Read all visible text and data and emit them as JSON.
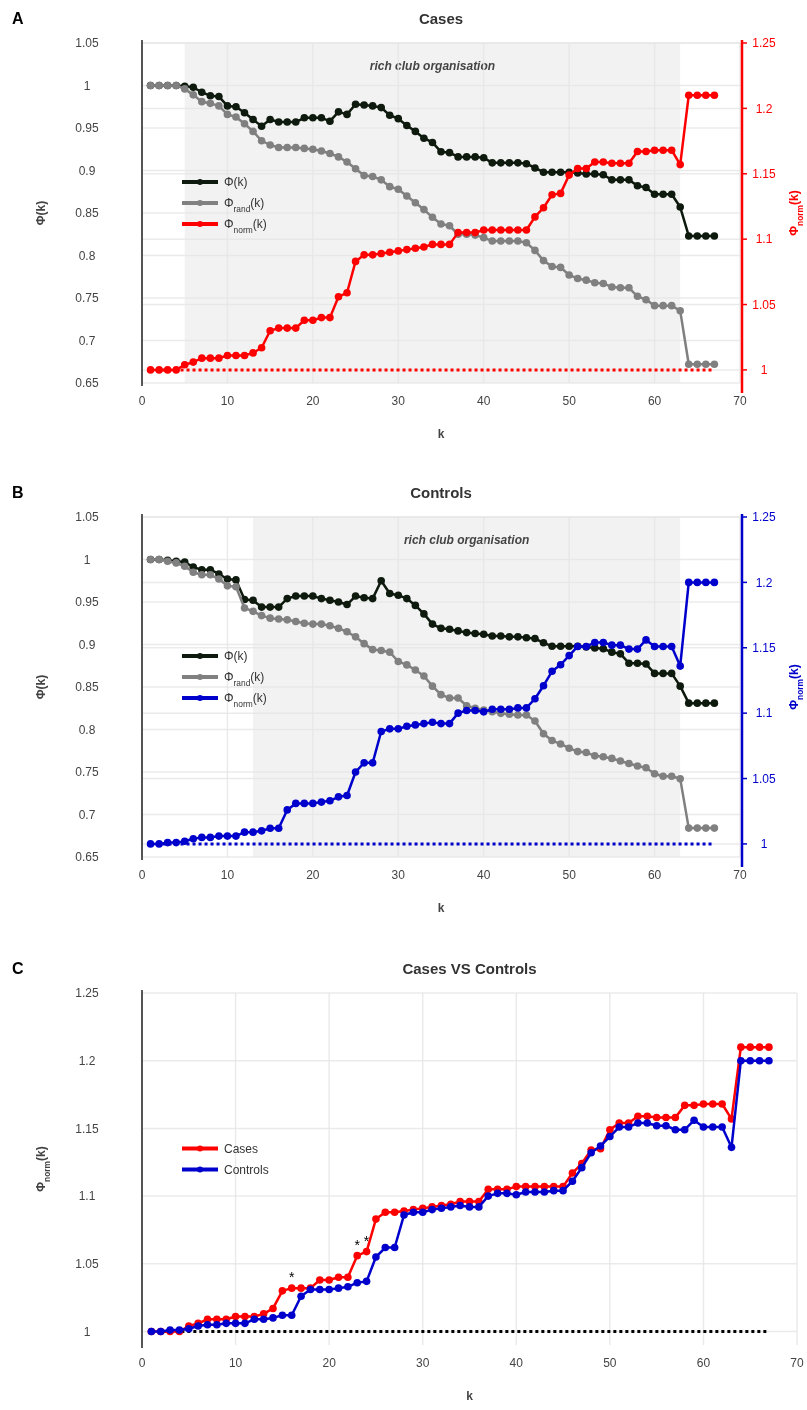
{
  "chart_data": [
    {
      "type": "line",
      "title": "Cases",
      "xlabel": "k",
      "ylabel": "Φ(k)",
      "y2label": "Φ$_{norm}$(k)",
      "annotations": [
        "A"
      ],
      "x": [
        1,
        2,
        3,
        4,
        5,
        6,
        7,
        8,
        9,
        10,
        11,
        12,
        13,
        14,
        15,
        16,
        17,
        18,
        19,
        20,
        21,
        22,
        23,
        24,
        25,
        26,
        27,
        28,
        29,
        30,
        31,
        32,
        33,
        34,
        35,
        36,
        37,
        38,
        39,
        40,
        41,
        42,
        43,
        44,
        45,
        46,
        47,
        48,
        49,
        50,
        51,
        52,
        53,
        54,
        55,
        56,
        57,
        58,
        59,
        60,
        61,
        62,
        63,
        64,
        65,
        66,
        67
      ],
      "xlim": [
        0,
        70
      ],
      "xticks": [
        0,
        10,
        20,
        30,
        40,
        50,
        60,
        70
      ],
      "ylim": [
        0.65,
        1.05
      ],
      "yticks": [
        0.65,
        0.7,
        0.75,
        0.8,
        0.85,
        0.9,
        0.95,
        1,
        1.05
      ],
      "y2lim": [
        0.99,
        1.25
      ],
      "y2ticks": [
        1,
        1.05,
        1.1,
        1.15,
        1.2,
        1.25
      ],
      "grid": true,
      "legend": "left",
      "marker": "circle",
      "line_style": "solid",
      "bands": [
        {
          "axis": "x",
          "from": 5,
          "to": 63,
          "label": "rich club organisation",
          "color": "#f2f2f2"
        }
      ],
      "ref_lines": [
        {
          "axis": "y2",
          "value": 1,
          "color": "#ff0000",
          "line_style": "dotted"
        }
      ],
      "series": [
        {
          "name": "Φ(k)",
          "color": "#0d1a0d",
          "values": [
            1,
            1,
            1,
            1,
            0.999,
            0.998,
            0.992,
            0.988,
            0.987,
            0.976,
            0.975,
            0.968,
            0.96,
            0.952,
            0.96,
            0.957,
            0.957,
            0.957,
            0.962,
            0.962,
            0.962,
            0.958,
            0.969,
            0.966,
            0.978,
            0.977,
            0.976,
            0.974,
            0.965,
            0.961,
            0.953,
            0.946,
            0.938,
            0.933,
            0.922,
            0.921,
            0.916,
            0.916,
            0.916,
            0.915,
            0.909,
            0.909,
            0.909,
            0.909,
            0.908,
            0.903,
            0.898,
            0.898,
            0.898,
            0.898,
            0.897,
            0.896,
            0.896,
            0.895,
            0.889,
            0.889,
            0.889,
            0.882,
            0.88,
            0.872,
            0.872,
            0.872,
            0.857,
            0.823,
            0.823,
            0.823,
            0.823
          ]
        },
        {
          "name": "Φ$_{rand}$(k)",
          "color": "#808080",
          "values": [
            1,
            1,
            1,
            1,
            0.996,
            0.989,
            0.981,
            0.979,
            0.976,
            0.966,
            0.963,
            0.955,
            0.946,
            0.935,
            0.93,
            0.927,
            0.927,
            0.927,
            0.926,
            0.925,
            0.923,
            0.92,
            0.916,
            0.91,
            0.902,
            0.894,
            0.893,
            0.889,
            0.881,
            0.878,
            0.87,
            0.862,
            0.854,
            0.845,
            0.837,
            0.835,
            0.825,
            0.825,
            0.824,
            0.821,
            0.817,
            0.817,
            0.817,
            0.817,
            0.815,
            0.806,
            0.794,
            0.787,
            0.786,
            0.777,
            0.773,
            0.771,
            0.768,
            0.767,
            0.763,
            0.762,
            0.762,
            0.752,
            0.748,
            0.741,
            0.741,
            0.741,
            0.735,
            0.672,
            0.672,
            0.672,
            0.672
          ]
        },
        {
          "name": "Φ$_{norm}$(k)",
          "color": "#ff0000",
          "axis": "y2",
          "values": [
            1,
            1,
            1,
            1,
            1.004,
            1.006,
            1.009,
            1.009,
            1.009,
            1.011,
            1.011,
            1.011,
            1.013,
            1.017,
            1.03,
            1.032,
            1.032,
            1.032,
            1.038,
            1.038,
            1.04,
            1.04,
            1.056,
            1.059,
            1.083,
            1.088,
            1.088,
            1.089,
            1.09,
            1.091,
            1.092,
            1.093,
            1.094,
            1.096,
            1.096,
            1.096,
            1.105,
            1.105,
            1.105,
            1.107,
            1.107,
            1.107,
            1.107,
            1.107,
            1.107,
            1.117,
            1.124,
            1.134,
            1.135,
            1.149,
            1.154,
            1.154,
            1.159,
            1.159,
            1.158,
            1.158,
            1.158,
            1.167,
            1.167,
            1.168,
            1.168,
            1.168,
            1.157,
            1.21,
            1.21,
            1.21,
            1.21
          ]
        }
      ]
    },
    {
      "type": "line",
      "title": "Controls",
      "xlabel": "k",
      "ylabel": "Φ(k)",
      "y2label": "Φ$_{norm}$(k)",
      "annotations": [
        "B"
      ],
      "x": [
        1,
        2,
        3,
        4,
        5,
        6,
        7,
        8,
        9,
        10,
        11,
        12,
        13,
        14,
        15,
        16,
        17,
        18,
        19,
        20,
        21,
        22,
        23,
        24,
        25,
        26,
        27,
        28,
        29,
        30,
        31,
        32,
        33,
        34,
        35,
        36,
        37,
        38,
        39,
        40,
        41,
        42,
        43,
        44,
        45,
        46,
        47,
        48,
        49,
        50,
        51,
        52,
        53,
        54,
        55,
        56,
        57,
        58,
        59,
        60,
        61,
        62,
        63,
        64,
        65,
        66,
        67
      ],
      "xlim": [
        0,
        70
      ],
      "xticks": [
        0,
        10,
        20,
        30,
        40,
        50,
        60,
        70
      ],
      "ylim": [
        0.65,
        1.05
      ],
      "yticks": [
        0.65,
        0.7,
        0.75,
        0.8,
        0.85,
        0.9,
        0.95,
        1,
        1.05
      ],
      "y2lim": [
        0.99,
        1.25
      ],
      "y2ticks": [
        1,
        1.05,
        1.1,
        1.15,
        1.2,
        1.25
      ],
      "grid": true,
      "legend": "left",
      "marker": "circle",
      "line_style": "solid",
      "bands": [
        {
          "axis": "x",
          "from": 13,
          "to": 63,
          "label": "rich club organisation",
          "color": "#f2f2f2"
        }
      ],
      "ref_lines": [
        {
          "axis": "y2",
          "value": 1,
          "color": "#0000cc",
          "line_style": "dotted"
        }
      ],
      "series": [
        {
          "name": "Φ(k)",
          "color": "#0d1a0d",
          "values": [
            1,
            1,
            0.999,
            0.998,
            0.997,
            0.991,
            0.988,
            0.988,
            0.983,
            0.977,
            0.976,
            0.953,
            0.952,
            0.944,
            0.944,
            0.944,
            0.954,
            0.957,
            0.957,
            0.957,
            0.954,
            0.952,
            0.95,
            0.947,
            0.957,
            0.955,
            0.954,
            0.975,
            0.96,
            0.958,
            0.954,
            0.946,
            0.936,
            0.924,
            0.919,
            0.918,
            0.916,
            0.914,
            0.913,
            0.912,
            0.91,
            0.91,
            0.909,
            0.909,
            0.908,
            0.907,
            0.902,
            0.898,
            0.898,
            0.898,
            0.898,
            0.897,
            0.896,
            0.895,
            0.891,
            0.889,
            0.878,
            0.878,
            0.877,
            0.866,
            0.866,
            0.866,
            0.851,
            0.831,
            0.831,
            0.831,
            0.831
          ]
        },
        {
          "name": "Φ$_{rand}$(k)",
          "color": "#808080",
          "values": [
            1,
            1,
            0.998,
            0.996,
            0.992,
            0.985,
            0.982,
            0.982,
            0.977,
            0.969,
            0.968,
            0.943,
            0.939,
            0.934,
            0.931,
            0.93,
            0.929,
            0.927,
            0.925,
            0.924,
            0.924,
            0.922,
            0.919,
            0.915,
            0.909,
            0.901,
            0.894,
            0.893,
            0.891,
            0.88,
            0.876,
            0.87,
            0.863,
            0.851,
            0.841,
            0.837,
            0.837,
            0.828,
            0.825,
            0.823,
            0.821,
            0.819,
            0.818,
            0.817,
            0.817,
            0.81,
            0.795,
            0.787,
            0.783,
            0.778,
            0.774,
            0.773,
            0.769,
            0.768,
            0.766,
            0.763,
            0.76,
            0.757,
            0.755,
            0.748,
            0.745,
            0.745,
            0.742,
            0.684,
            0.684,
            0.684,
            0.684
          ]
        },
        {
          "name": "Φ$_{norm}$(k)",
          "color": "#0000cc",
          "axis": "y2",
          "values": [
            1,
            1,
            1.001,
            1.001,
            1.002,
            1.004,
            1.005,
            1.005,
            1.006,
            1.006,
            1.006,
            1.009,
            1.009,
            1.01,
            1.012,
            1.012,
            1.026,
            1.031,
            1.031,
            1.031,
            1.032,
            1.033,
            1.036,
            1.037,
            1.055,
            1.062,
            1.062,
            1.086,
            1.088,
            1.088,
            1.09,
            1.091,
            1.092,
            1.093,
            1.092,
            1.092,
            1.1,
            1.102,
            1.102,
            1.101,
            1.103,
            1.103,
            1.103,
            1.104,
            1.104,
            1.111,
            1.121,
            1.132,
            1.137,
            1.144,
            1.151,
            1.151,
            1.154,
            1.154,
            1.152,
            1.152,
            1.149,
            1.149,
            1.156,
            1.151,
            1.151,
            1.151,
            1.136,
            1.2,
            1.2,
            1.2,
            1.2
          ]
        }
      ]
    },
    {
      "type": "line",
      "title": "Cases VS Controls",
      "xlabel": "k",
      "ylabel": "Φ$_{norm}$(k)",
      "annotations": [
        "C",
        {
          "text": "*",
          "x": 16,
          "y": 1.032
        },
        {
          "text": "*",
          "x": 23,
          "y": 1.056
        },
        {
          "text": "*",
          "x": 24,
          "y": 1.059
        }
      ],
      "x": [
        1,
        2,
        3,
        4,
        5,
        6,
        7,
        8,
        9,
        10,
        11,
        12,
        13,
        14,
        15,
        16,
        17,
        18,
        19,
        20,
        21,
        22,
        23,
        24,
        25,
        26,
        27,
        28,
        29,
        30,
        31,
        32,
        33,
        34,
        35,
        36,
        37,
        38,
        39,
        40,
        41,
        42,
        43,
        44,
        45,
        46,
        47,
        48,
        49,
        50,
        51,
        52,
        53,
        54,
        55,
        56,
        57,
        58,
        59,
        60,
        61,
        62,
        63,
        64,
        65,
        66,
        67
      ],
      "xlim": [
        0,
        70
      ],
      "xticks": [
        0,
        10,
        20,
        30,
        40,
        50,
        60,
        70
      ],
      "ylim": [
        0.99,
        1.25
      ],
      "yticks": [
        1,
        1.05,
        1.1,
        1.15,
        1.2,
        1.25
      ],
      "grid": true,
      "legend": "left",
      "marker": "circle",
      "line_style": "solid",
      "ref_lines": [
        {
          "axis": "y",
          "value": 1,
          "color": "#000000",
          "line_style": "dotted"
        }
      ],
      "series": [
        {
          "name": "Cases",
          "color": "#ff0000",
          "values": [
            1,
            1,
            1,
            1,
            1.004,
            1.006,
            1.009,
            1.009,
            1.009,
            1.011,
            1.011,
            1.011,
            1.013,
            1.017,
            1.03,
            1.032,
            1.032,
            1.032,
            1.038,
            1.038,
            1.04,
            1.04,
            1.056,
            1.059,
            1.083,
            1.088,
            1.088,
            1.089,
            1.09,
            1.091,
            1.092,
            1.093,
            1.094,
            1.096,
            1.096,
            1.096,
            1.105,
            1.105,
            1.105,
            1.107,
            1.107,
            1.107,
            1.107,
            1.107,
            1.107,
            1.117,
            1.124,
            1.134,
            1.135,
            1.149,
            1.154,
            1.154,
            1.159,
            1.159,
            1.158,
            1.158,
            1.158,
            1.167,
            1.167,
            1.168,
            1.168,
            1.168,
            1.157,
            1.21,
            1.21,
            1.21,
            1.21
          ]
        },
        {
          "name": "Controls",
          "color": "#0000cc",
          "values": [
            1,
            1,
            1.001,
            1.001,
            1.002,
            1.004,
            1.005,
            1.005,
            1.006,
            1.006,
            1.006,
            1.009,
            1.009,
            1.01,
            1.012,
            1.012,
            1.026,
            1.031,
            1.031,
            1.031,
            1.032,
            1.033,
            1.036,
            1.037,
            1.055,
            1.062,
            1.062,
            1.086,
            1.088,
            1.088,
            1.09,
            1.091,
            1.092,
            1.093,
            1.092,
            1.092,
            1.1,
            1.102,
            1.102,
            1.101,
            1.103,
            1.103,
            1.103,
            1.104,
            1.104,
            1.111,
            1.121,
            1.132,
            1.137,
            1.144,
            1.151,
            1.151,
            1.154,
            1.154,
            1.152,
            1.152,
            1.149,
            1.149,
            1.156,
            1.151,
            1.151,
            1.151,
            1.136,
            1.2,
            1.2,
            1.2,
            1.2
          ]
        }
      ]
    }
  ]
}
